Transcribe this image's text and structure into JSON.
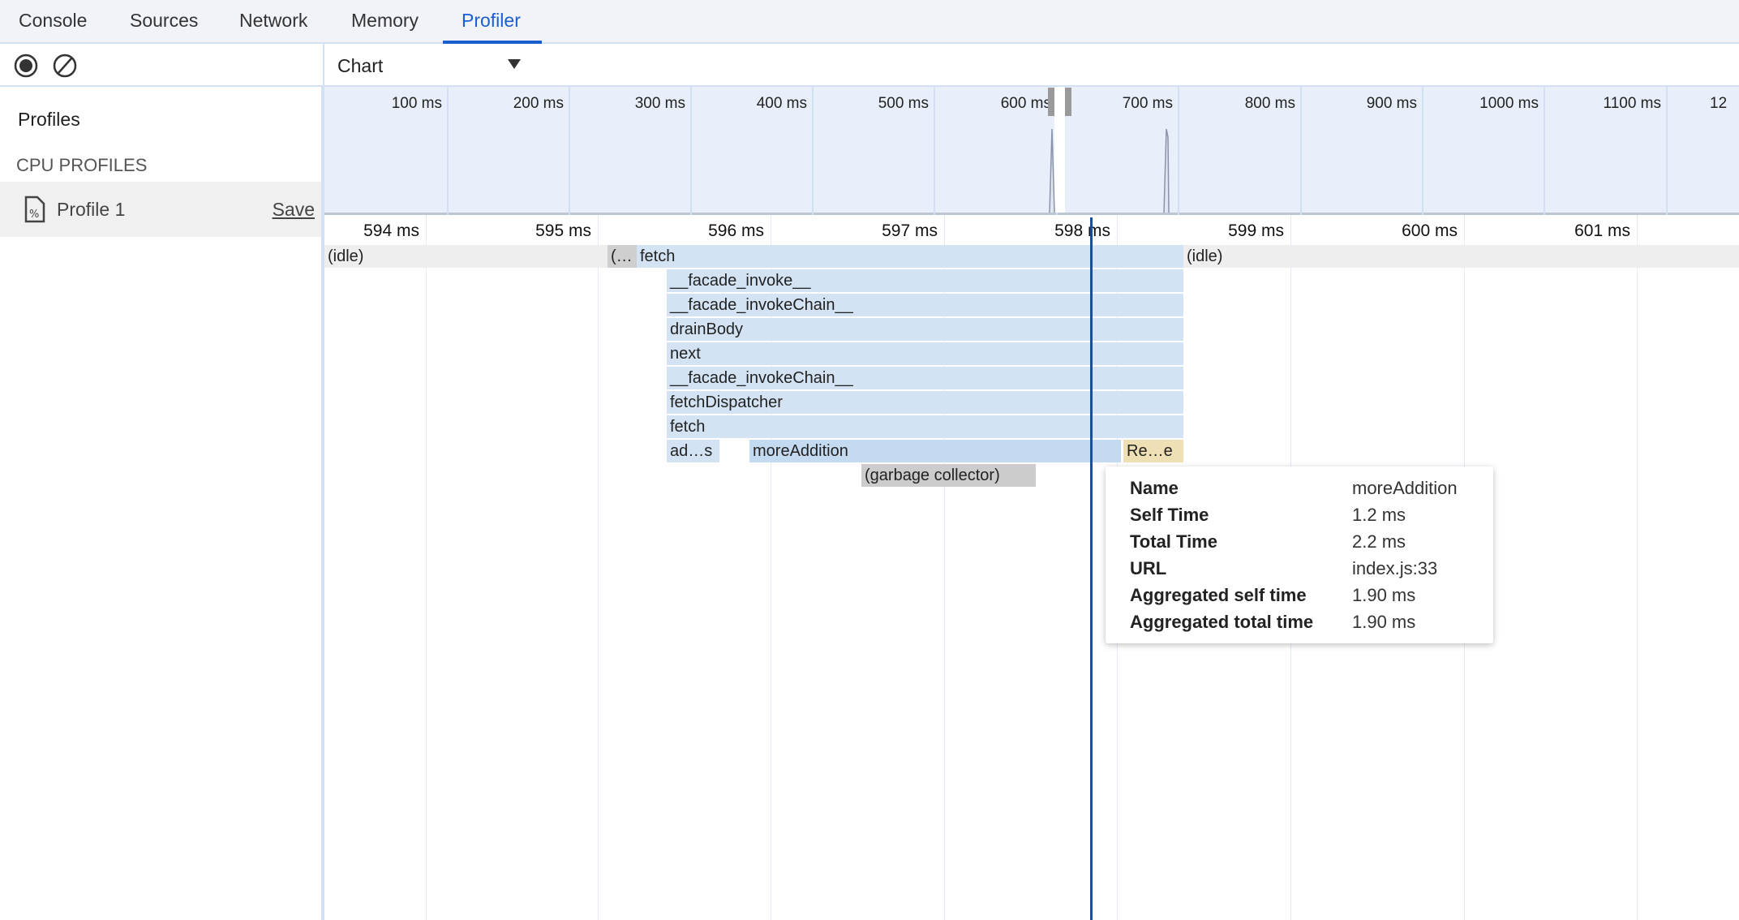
{
  "tabs": [
    {
      "label": "Console"
    },
    {
      "label": "Sources"
    },
    {
      "label": "Network"
    },
    {
      "label": "Memory"
    },
    {
      "label": "Profiler",
      "active": true
    }
  ],
  "toolbar": {
    "view_select": "Chart",
    "record_icon": "record-icon",
    "clear_icon": "clear-icon"
  },
  "sidebar": {
    "title": "Profiles",
    "section": "CPU PROFILES",
    "profiles": [
      {
        "name": "Profile 1",
        "save_label": "Save"
      }
    ]
  },
  "overview": {
    "ticks": [
      "100 ms",
      "200 ms",
      "300 ms",
      "400 ms",
      "500 ms",
      "600 ms",
      "700 ms",
      "800 ms",
      "900 ms",
      "1000 ms",
      "1100 ms",
      "12"
    ]
  },
  "ruler": {
    "ticks": [
      "594 ms",
      "595 ms",
      "596 ms",
      "597 ms",
      "598 ms",
      "599 ms",
      "600 ms",
      "601 ms"
    ]
  },
  "flame": {
    "idle_left": "(idle)",
    "idle_right": "(idle)",
    "program": "(…",
    "root": "fetch",
    "stack": [
      "__facade_invoke__",
      "__facade_invokeChain__",
      "drainBody",
      "next",
      "__facade_invokeChain__",
      "fetchDispatcher",
      "fetch"
    ],
    "leaf_a": "ad…s",
    "leaf_b": "moreAddition",
    "leaf_c": "Re…e",
    "gc": "(garbage collector)"
  },
  "tooltip": {
    "rows": [
      {
        "label": "Name",
        "value": "moreAddition"
      },
      {
        "label": "Self Time",
        "value": "1.2 ms"
      },
      {
        "label": "Total Time",
        "value": "2.2 ms"
      },
      {
        "label": "URL",
        "value": "index.js:33"
      },
      {
        "label": "Aggregated self time",
        "value": "1.90 ms"
      },
      {
        "label": "Aggregated total time",
        "value": "1.90 ms"
      }
    ]
  },
  "colors": {
    "accent": "#1a5fd0",
    "bar": "#d3e3f3",
    "selected": "#c4daf0",
    "native": "#eedfb5",
    "gc": "#cccccc",
    "cursor": "#1a4f9c"
  }
}
